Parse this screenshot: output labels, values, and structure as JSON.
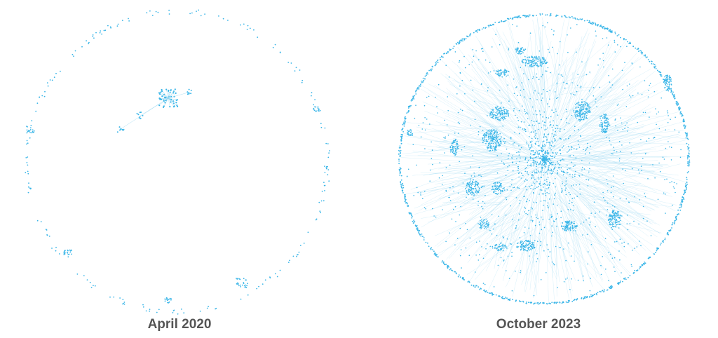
{
  "figure": {
    "colors": {
      "node": "#3bb6e8",
      "edge": "#8fd3f0",
      "ring": "#3bb6e8",
      "caption": "#555555"
    },
    "panels": [
      {
        "caption": "April 2020",
        "style": "sparse ring with few connected clusters"
      },
      {
        "caption": "October 2023",
        "style": "dense network with hub clusters inside ring"
      }
    ]
  }
}
